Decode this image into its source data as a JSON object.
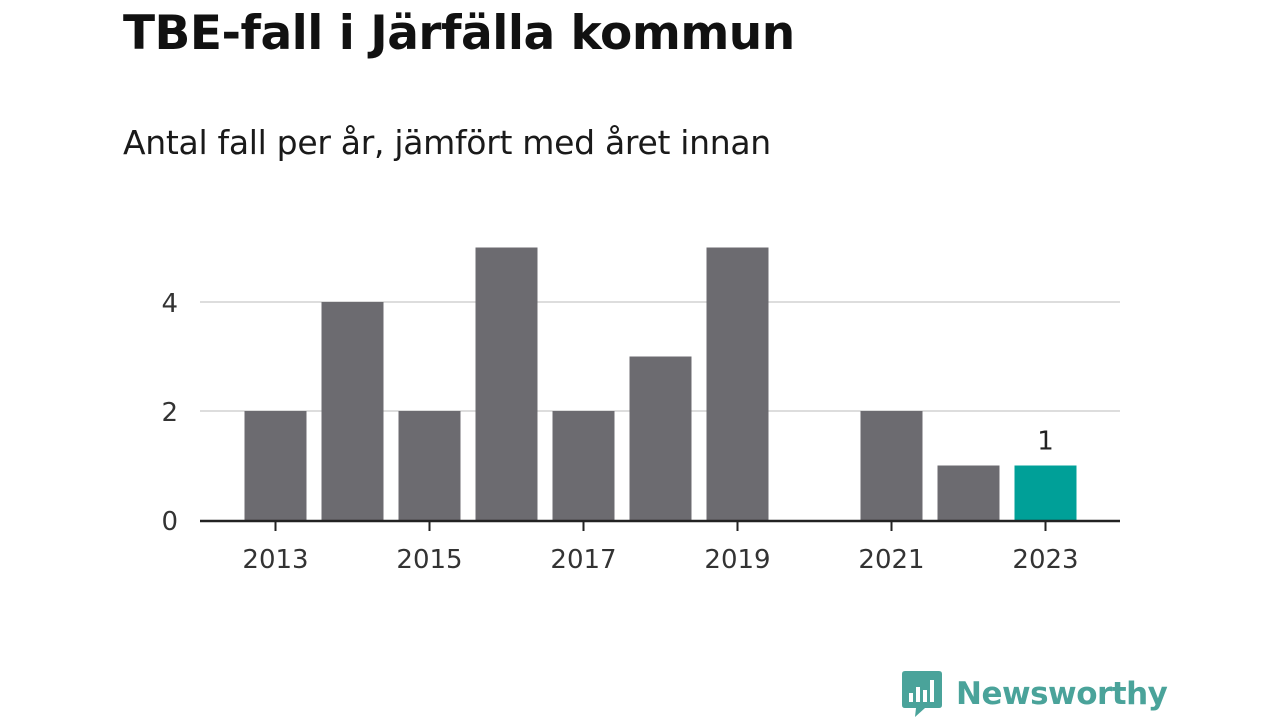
{
  "title": "TBE-fall i Järfälla kommun",
  "subtitle": "Antal fall per år, jämfört med året innan",
  "brand": {
    "name": "Newsworthy",
    "icon": "bar-chart-speech-bubble-icon",
    "color": "#4aa39a"
  },
  "chart_data": {
    "type": "bar",
    "categories": [
      "2013",
      "2014",
      "2015",
      "2016",
      "2017",
      "2018",
      "2019",
      "2020",
      "2021",
      "2022",
      "2023"
    ],
    "values": [
      2,
      4,
      2,
      5,
      2,
      3,
      5,
      0,
      2,
      1,
      1
    ],
    "x_tick_labels": [
      "2013",
      "2015",
      "2017",
      "2019",
      "2021",
      "2023"
    ],
    "y_ticks": [
      0,
      2,
      4
    ],
    "ylim": [
      0,
      5
    ],
    "grid": true,
    "bar_color": "#6c6b70",
    "highlight_color": "#00a098",
    "highlight_category": "2023",
    "data_labels": [
      {
        "category": "2023",
        "text": "1"
      }
    ],
    "xlabel": "",
    "ylabel": ""
  }
}
